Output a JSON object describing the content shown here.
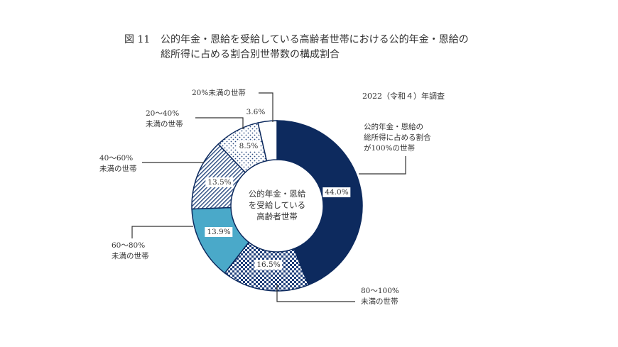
{
  "title": {
    "fig": "図 11",
    "line1": "公的年金・恩給を受給している高齢者世帯における公的年金・恩給の",
    "line2": "総所得に占める割合別世帯数の構成割合"
  },
  "survey_year": "2022（令和４）年調査",
  "chart_data": {
    "type": "pie",
    "donut": true,
    "title": "公的年金・恩給の総所得に占める割合別世帯数の構成割合",
    "center_label": [
      "公的年金・恩給",
      "を受給している",
      "高齢者世帯"
    ],
    "unit": "%",
    "slices": [
      {
        "label": [
          "公的年金・恩給の",
          "総所得に占める割合",
          "が100%の世帯"
        ],
        "value": 44.0,
        "value_label": "44.0%",
        "color": "#0d2a5e",
        "pattern": "solid"
      },
      {
        "label": [
          "80～100%",
          "未満の世帯"
        ],
        "value": 16.5,
        "value_label": "16.5%",
        "color": "#1f3f7a",
        "pattern": "checker"
      },
      {
        "label": [
          "60～80%",
          "未満の世帯"
        ],
        "value": 13.9,
        "value_label": "13.9%",
        "color": "#4aa9c9",
        "pattern": "solid"
      },
      {
        "label": [
          "40～60%",
          "未満の世帯"
        ],
        "value": 13.5,
        "value_label": "13.5%",
        "color": "#2a4a80",
        "pattern": "hatch"
      },
      {
        "label": [
          "20～40%",
          "未満の世帯"
        ],
        "value": 8.5,
        "value_label": "8.5%",
        "color": "#2a4a80",
        "pattern": "dots"
      },
      {
        "label": [
          "20%未満の世帯"
        ],
        "value": 3.6,
        "value_label": "3.6%",
        "color": "#ffffff",
        "pattern": "solid"
      }
    ]
  }
}
